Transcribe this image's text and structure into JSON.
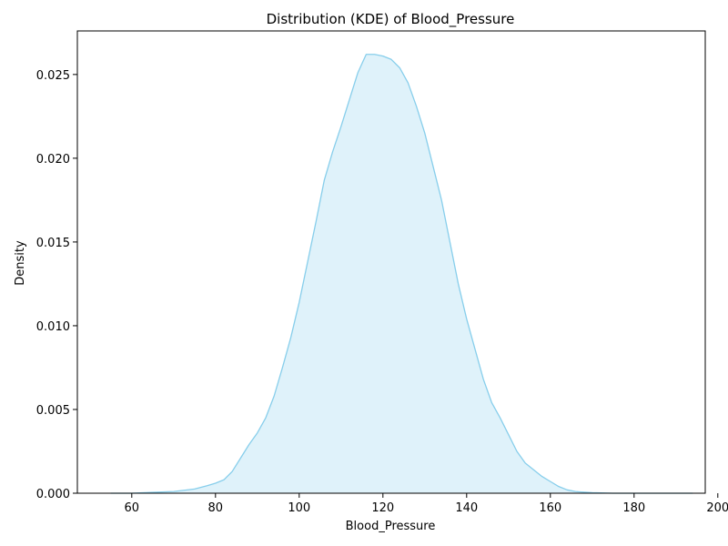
{
  "chart_data": {
    "type": "area",
    "title": "Distribution (KDE) of Blood_Pressure",
    "xlabel": "Blood_Pressure",
    "ylabel": "Density",
    "xlim": [
      47,
      197
    ],
    "ylim": [
      0,
      0.0276
    ],
    "xticks": [
      60,
      80,
      100,
      120,
      140,
      160,
      180,
      200
    ],
    "xtick_labels": [
      "60",
      "80",
      "100",
      "120",
      "140",
      "160",
      "180",
      "200"
    ],
    "yticks": [
      0,
      0.005,
      0.01,
      0.015,
      0.02,
      0.025
    ],
    "ytick_labels": [
      "0.000",
      "0.005",
      "0.010",
      "0.015",
      "0.020",
      "0.025"
    ],
    "grid": false,
    "legend": "none",
    "colors": {
      "line": "#87ceeb",
      "fill": "#87ceeb",
      "fill_opacity": 0.27
    },
    "series": [
      {
        "x": [
          55,
          60,
          65,
          70,
          75,
          78,
          80,
          82,
          84,
          86,
          88,
          90,
          92,
          94,
          96,
          98,
          100,
          102,
          104,
          106,
          108,
          110,
          112,
          114,
          116,
          118,
          120,
          122,
          124,
          126,
          128,
          130,
          132,
          134,
          136,
          138,
          140,
          142,
          144,
          146,
          148,
          150,
          152,
          154,
          156,
          158,
          160,
          162,
          164,
          166,
          170,
          175,
          180,
          185,
          190,
          194
        ],
        "y": [
          0.0,
          0.0,
          5e-05,
          0.0001,
          0.00025,
          0.00045,
          0.0006,
          0.0008,
          0.0013,
          0.0021,
          0.0029,
          0.0036,
          0.0045,
          0.0058,
          0.0075,
          0.0093,
          0.0114,
          0.0138,
          0.0162,
          0.0187,
          0.0204,
          0.0219,
          0.0235,
          0.0251,
          0.0262,
          0.0262,
          0.0261,
          0.0259,
          0.0254,
          0.0245,
          0.0231,
          0.0215,
          0.0195,
          0.0175,
          0.015,
          0.0125,
          0.0104,
          0.0086,
          0.0068,
          0.0054,
          0.0045,
          0.0035,
          0.0025,
          0.0018,
          0.0014,
          0.001,
          0.0007,
          0.0004,
          0.0002,
          0.0001,
          3e-05,
          0.0,
          0.0,
          0.0,
          0.0,
          0.0
        ]
      }
    ]
  }
}
